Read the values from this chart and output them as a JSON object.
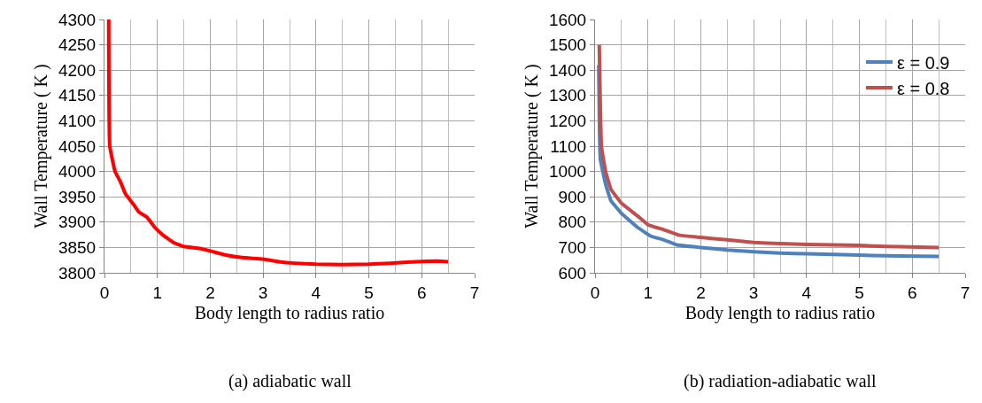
{
  "chart_data": [
    {
      "type": "line",
      "xlabel": "Body length to radius ratio",
      "ylabel": "Wall Temperature ( K )",
      "annotations": [
        "(a) adiabatic wall"
      ],
      "xlim": [
        0,
        7
      ],
      "xticks": [
        0,
        1,
        2,
        3,
        4,
        5,
        6,
        7
      ],
      "ylim": [
        3800,
        4300
      ],
      "yticks": [
        3800,
        3850,
        3900,
        3950,
        4000,
        4050,
        4100,
        4150,
        4200,
        4250,
        4300
      ],
      "grid": true,
      "legend": false,
      "marker": "none",
      "line_style": "solid",
      "series": [
        {
          "color": "#ff0000",
          "x": [
            0.08,
            0.1,
            0.2,
            0.3,
            0.4,
            0.55,
            0.65,
            0.8,
            0.95,
            1.1,
            1.3,
            1.5,
            1.8,
            2.0,
            2.3,
            2.6,
            3.0,
            3.3,
            3.6,
            4.0,
            4.5,
            5.0,
            5.4,
            5.9,
            6.3,
            6.5
          ],
          "values": [
            4300,
            4050,
            4000,
            3980,
            3955,
            3935,
            3920,
            3910,
            3890,
            3875,
            3860,
            3852,
            3848,
            3843,
            3835,
            3830,
            3827,
            3822,
            3819,
            3817,
            3816,
            3817,
            3819,
            3822,
            3823,
            3822
          ]
        }
      ]
    },
    {
      "type": "line",
      "xlabel": "Body length to radius ratio",
      "ylabel": "Wall Temperature ( K )",
      "annotations": [
        "(b) radiation-adiabatic wall"
      ],
      "xlim": [
        0,
        7
      ],
      "xticks": [
        0,
        1,
        2,
        3,
        4,
        5,
        6,
        7
      ],
      "ylim": [
        600,
        1600
      ],
      "yticks": [
        600,
        700,
        800,
        900,
        1000,
        1100,
        1200,
        1300,
        1400,
        1500,
        1600
      ],
      "grid": true,
      "legend": "top right",
      "marker": "none",
      "line_style": "solid",
      "series": [
        {
          "name": "ε = 0.9",
          "color": "#4f81bd",
          "x": [
            0.07,
            0.1,
            0.2,
            0.3,
            0.5,
            0.8,
            1.05,
            1.3,
            1.55,
            2.0,
            2.5,
            3.0,
            3.5,
            4.0,
            5.0,
            5.5,
            6.5
          ],
          "values": [
            1420,
            1050,
            950,
            885,
            835,
            780,
            745,
            730,
            710,
            700,
            690,
            683,
            678,
            675,
            670,
            667,
            665
          ]
        },
        {
          "name": "ε = 0.8",
          "color": "#c0504d",
          "x": [
            0.08,
            0.12,
            0.2,
            0.3,
            0.5,
            0.8,
            1.0,
            1.3,
            1.6,
            2.0,
            2.5,
            3.0,
            3.5,
            4.0,
            5.0,
            5.5,
            6.5
          ],
          "values": [
            1500,
            1100,
            1000,
            930,
            875,
            825,
            790,
            770,
            748,
            740,
            730,
            720,
            715,
            712,
            708,
            704,
            700
          ]
        }
      ]
    }
  ]
}
